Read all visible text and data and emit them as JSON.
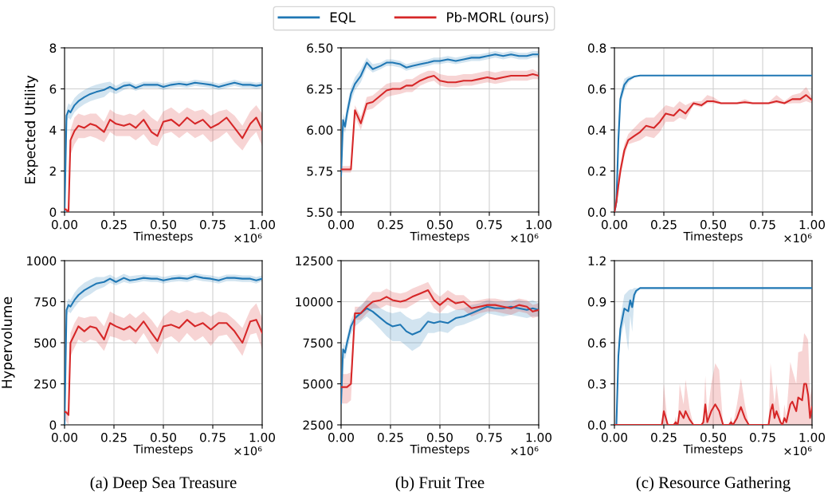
{
  "chart_data": [
    {
      "type": "line",
      "ylabel": "Expected Utility",
      "xlabel": "Timesteps",
      "grid": true,
      "legend": "top",
      "xlim": [
        0,
        1
      ],
      "xticks": [
        {
          "value": 0,
          "label": "0.00"
        },
        {
          "value": 0.25,
          "label": "0.25"
        },
        {
          "value": 0.5,
          "label": "0.50"
        },
        {
          "value": 0.75,
          "label": "0.75"
        },
        {
          "value": 1,
          "label": "1.00"
        }
      ],
      "ylim": [
        0,
        8
      ],
      "yticks": [
        0,
        2,
        4,
        6,
        8
      ],
      "annotations": [
        "×10⁶"
      ],
      "x": [
        0,
        0.01,
        0.02,
        0.03,
        0.05,
        0.07,
        0.1,
        0.13,
        0.16,
        0.2,
        0.23,
        0.26,
        0.3,
        0.33,
        0.36,
        0.4,
        0.44,
        0.47,
        0.5,
        0.54,
        0.58,
        0.62,
        0.66,
        0.7,
        0.74,
        0.78,
        0.82,
        0.86,
        0.9,
        0.94,
        0.97,
        1.0
      ],
      "series": [
        {
          "name": "EQL",
          "color": "#1f77b4",
          "values": [
            0,
            4.7,
            4.95,
            4.85,
            5.2,
            5.4,
            5.6,
            5.75,
            5.85,
            5.95,
            6.1,
            5.95,
            6.15,
            6.2,
            6.05,
            6.2,
            6.2,
            6.2,
            6.1,
            6.2,
            6.25,
            6.2,
            6.3,
            6.25,
            6.2,
            6.1,
            6.2,
            6.3,
            6.2,
            6.2,
            6.15,
            6.2
          ],
          "lower": [
            0,
            4.4,
            4.6,
            4.5,
            4.85,
            5.05,
            5.25,
            5.4,
            5.5,
            5.6,
            5.85,
            5.75,
            5.95,
            6.05,
            5.9,
            6.05,
            6.05,
            6.05,
            5.95,
            6.05,
            6.1,
            6.05,
            6.15,
            6.1,
            6.05,
            5.95,
            6.05,
            6.15,
            6.05,
            6.05,
            6.0,
            6.05
          ],
          "upper": [
            0,
            5.0,
            5.3,
            5.2,
            5.55,
            5.75,
            5.95,
            6.1,
            6.2,
            6.3,
            6.35,
            6.15,
            6.35,
            6.35,
            6.2,
            6.35,
            6.35,
            6.35,
            6.25,
            6.35,
            6.4,
            6.35,
            6.45,
            6.4,
            6.35,
            6.25,
            6.35,
            6.45,
            6.35,
            6.35,
            6.3,
            6.35
          ]
        },
        {
          "name": "Pb-MORL (ours)",
          "color": "#d62728",
          "values": [
            0.15,
            0.1,
            0.0,
            3.5,
            3.95,
            4.2,
            4.1,
            4.3,
            4.2,
            3.9,
            4.5,
            4.3,
            4.2,
            4.3,
            4.1,
            4.5,
            3.9,
            3.7,
            4.4,
            4.5,
            4.2,
            4.6,
            4.3,
            4.5,
            4.1,
            4.3,
            4.6,
            4.1,
            3.6,
            4.3,
            4.6,
            4.0
          ],
          "lower": [
            0.1,
            0.0,
            0.0,
            2.8,
            3.3,
            3.6,
            3.6,
            3.7,
            3.6,
            3.4,
            3.9,
            3.7,
            3.7,
            3.7,
            3.5,
            3.8,
            3.3,
            3.2,
            3.8,
            3.9,
            3.6,
            3.9,
            3.6,
            3.8,
            3.4,
            3.6,
            3.9,
            3.4,
            3.0,
            3.6,
            3.9,
            3.2
          ],
          "upper": [
            0.2,
            0.2,
            0.1,
            4.0,
            4.6,
            4.8,
            4.7,
            4.8,
            4.8,
            4.4,
            5.0,
            4.8,
            4.7,
            4.8,
            4.7,
            5.0,
            4.6,
            4.4,
            4.9,
            5.1,
            4.8,
            5.1,
            4.9,
            5.0,
            4.7,
            4.9,
            5.0,
            4.7,
            4.2,
            4.9,
            5.2,
            4.8
          ]
        }
      ]
    },
    {
      "type": "line",
      "xlabel": "Timesteps",
      "grid": true,
      "xlim": [
        0,
        1
      ],
      "xticks": [
        {
          "value": 0,
          "label": "0.00"
        },
        {
          "value": 0.25,
          "label": "0.25"
        },
        {
          "value": 0.5,
          "label": "0.50"
        },
        {
          "value": 0.75,
          "label": "0.75"
        },
        {
          "value": 1,
          "label": "1.00"
        }
      ],
      "ylim": [
        5.5,
        6.5
      ],
      "yticks": [
        {
          "value": 5.5,
          "label": "5.50"
        },
        {
          "value": 5.75,
          "label": "5.75"
        },
        {
          "value": 6.0,
          "label": "6.00"
        },
        {
          "value": 6.25,
          "label": "6.25"
        },
        {
          "value": 6.5,
          "label": "6.50"
        }
      ],
      "annotations": [
        "×10⁶"
      ],
      "x": [
        0,
        0.01,
        0.02,
        0.03,
        0.05,
        0.07,
        0.1,
        0.13,
        0.16,
        0.2,
        0.23,
        0.26,
        0.3,
        0.33,
        0.36,
        0.4,
        0.44,
        0.47,
        0.5,
        0.54,
        0.58,
        0.62,
        0.66,
        0.7,
        0.74,
        0.78,
        0.82,
        0.86,
        0.9,
        0.94,
        0.97,
        1.0
      ],
      "series": [
        {
          "color": "#1f77b4",
          "values": [
            5.72,
            6.06,
            6.02,
            6.1,
            6.22,
            6.28,
            6.33,
            6.41,
            6.37,
            6.39,
            6.41,
            6.41,
            6.4,
            6.38,
            6.39,
            6.4,
            6.41,
            6.42,
            6.42,
            6.43,
            6.42,
            6.43,
            6.44,
            6.44,
            6.45,
            6.46,
            6.45,
            6.46,
            6.45,
            6.45,
            6.46,
            6.46
          ],
          "lower": [
            5.7,
            6.0,
            5.98,
            6.05,
            6.17,
            6.24,
            6.29,
            6.38,
            6.35,
            6.37,
            6.39,
            6.39,
            6.38,
            6.36,
            6.37,
            6.38,
            6.39,
            6.4,
            6.4,
            6.41,
            6.4,
            6.41,
            6.42,
            6.42,
            6.43,
            6.44,
            6.43,
            6.44,
            6.43,
            6.43,
            6.44,
            6.44
          ],
          "upper": [
            5.74,
            6.1,
            6.07,
            6.15,
            6.26,
            6.32,
            6.37,
            6.44,
            6.4,
            6.41,
            6.43,
            6.43,
            6.42,
            6.4,
            6.41,
            6.42,
            6.43,
            6.44,
            6.44,
            6.45,
            6.44,
            6.45,
            6.46,
            6.46,
            6.47,
            6.48,
            6.47,
            6.48,
            6.47,
            6.47,
            6.48,
            6.48
          ]
        },
        {
          "color": "#d62728",
          "values": [
            5.76,
            5.76,
            5.76,
            5.76,
            5.76,
            6.12,
            6.04,
            6.16,
            6.17,
            6.21,
            6.24,
            6.25,
            6.25,
            6.27,
            6.27,
            6.3,
            6.32,
            6.33,
            6.3,
            6.29,
            6.29,
            6.3,
            6.3,
            6.31,
            6.32,
            6.31,
            6.32,
            6.33,
            6.33,
            6.33,
            6.34,
            6.33
          ],
          "lower": [
            5.74,
            5.74,
            5.74,
            5.74,
            5.74,
            6.08,
            6.0,
            6.12,
            6.13,
            6.17,
            6.2,
            6.21,
            6.22,
            6.23,
            6.23,
            6.27,
            6.29,
            6.3,
            6.27,
            6.26,
            6.26,
            6.27,
            6.27,
            6.28,
            6.29,
            6.28,
            6.29,
            6.3,
            6.3,
            6.3,
            6.31,
            6.31
          ],
          "upper": [
            5.78,
            5.78,
            5.78,
            5.78,
            5.78,
            6.15,
            6.08,
            6.2,
            6.21,
            6.25,
            6.28,
            6.29,
            6.29,
            6.31,
            6.31,
            6.34,
            6.36,
            6.36,
            6.34,
            6.33,
            6.33,
            6.34,
            6.34,
            6.35,
            6.36,
            6.35,
            6.36,
            6.36,
            6.36,
            6.36,
            6.37,
            6.35
          ]
        }
      ]
    },
    {
      "type": "line",
      "xlabel": "Timesteps",
      "grid": true,
      "xlim": [
        0,
        1
      ],
      "xticks": [
        {
          "value": 0,
          "label": "0.00"
        },
        {
          "value": 0.25,
          "label": "0.25"
        },
        {
          "value": 0.5,
          "label": "0.50"
        },
        {
          "value": 0.75,
          "label": "0.75"
        },
        {
          "value": 1,
          "label": "1.00"
        }
      ],
      "ylim": [
        0,
        0.8
      ],
      "yticks": [
        {
          "value": 0,
          "label": "0.0"
        },
        0.2,
        0.4,
        0.6,
        0.8
      ],
      "annotations": [
        "×10⁶"
      ],
      "x": [
        0,
        0.01,
        0.02,
        0.03,
        0.05,
        0.07,
        0.1,
        0.13,
        0.16,
        0.2,
        0.23,
        0.26,
        0.3,
        0.33,
        0.36,
        0.4,
        0.44,
        0.47,
        0.5,
        0.54,
        0.58,
        0.62,
        0.66,
        0.7,
        0.74,
        0.78,
        0.82,
        0.86,
        0.9,
        0.94,
        0.97,
        1.0
      ],
      "series": [
        {
          "color": "#1f77b4",
          "values": [
            0,
            0.05,
            0.35,
            0.55,
            0.62,
            0.645,
            0.66,
            0.665,
            0.665,
            0.665,
            0.665,
            0.665,
            0.665,
            0.665,
            0.665,
            0.665,
            0.665,
            0.665,
            0.665,
            0.665,
            0.665,
            0.665,
            0.665,
            0.665,
            0.665,
            0.665,
            0.665,
            0.665,
            0.665,
            0.665,
            0.665,
            0.665
          ],
          "lower": [
            0,
            0.02,
            0.3,
            0.52,
            0.59,
            0.63,
            0.655,
            0.665,
            0.665,
            0.665,
            0.665,
            0.665,
            0.665,
            0.665,
            0.665,
            0.665,
            0.665,
            0.665,
            0.665,
            0.665,
            0.665,
            0.665,
            0.665,
            0.665,
            0.665,
            0.665,
            0.665,
            0.665,
            0.665,
            0.665,
            0.665,
            0.665
          ],
          "upper": [
            0,
            0.08,
            0.4,
            0.58,
            0.65,
            0.66,
            0.665,
            0.665,
            0.665,
            0.665,
            0.665,
            0.665,
            0.665,
            0.665,
            0.665,
            0.665,
            0.665,
            0.665,
            0.665,
            0.665,
            0.665,
            0.665,
            0.665,
            0.665,
            0.665,
            0.665,
            0.665,
            0.665,
            0.665,
            0.665,
            0.665,
            0.665
          ]
        },
        {
          "color": "#d62728",
          "values": [
            0,
            0.05,
            0.13,
            0.2,
            0.3,
            0.35,
            0.37,
            0.39,
            0.42,
            0.41,
            0.44,
            0.48,
            0.47,
            0.5,
            0.48,
            0.53,
            0.52,
            0.54,
            0.54,
            0.53,
            0.53,
            0.53,
            0.535,
            0.53,
            0.53,
            0.53,
            0.54,
            0.53,
            0.55,
            0.55,
            0.57,
            0.545
          ],
          "lower": [
            0,
            0.02,
            0.09,
            0.17,
            0.27,
            0.33,
            0.34,
            0.35,
            0.37,
            0.36,
            0.39,
            0.44,
            0.44,
            0.46,
            0.45,
            0.52,
            0.51,
            0.53,
            0.53,
            0.525,
            0.525,
            0.525,
            0.53,
            0.525,
            0.525,
            0.525,
            0.53,
            0.525,
            0.53,
            0.53,
            0.54,
            0.53
          ],
          "upper": [
            0,
            0.08,
            0.17,
            0.23,
            0.33,
            0.38,
            0.41,
            0.44,
            0.46,
            0.46,
            0.49,
            0.52,
            0.51,
            0.54,
            0.52,
            0.54,
            0.54,
            0.57,
            0.56,
            0.535,
            0.535,
            0.535,
            0.55,
            0.535,
            0.535,
            0.535,
            0.57,
            0.54,
            0.57,
            0.58,
            0.61,
            0.56
          ]
        }
      ]
    },
    {
      "type": "line",
      "ylabel": "Hypervolume",
      "xlabel": "Timesteps",
      "grid": true,
      "xlim": [
        0,
        1
      ],
      "xticks": [
        {
          "value": 0,
          "label": "0.00"
        },
        {
          "value": 0.25,
          "label": "0.25"
        },
        {
          "value": 0.5,
          "label": "0.50"
        },
        {
          "value": 0.75,
          "label": "0.75"
        },
        {
          "value": 1,
          "label": "1.00"
        }
      ],
      "ylim": [
        0,
        1000
      ],
      "yticks": [
        0,
        250,
        500,
        750,
        1000
      ],
      "annotations": [
        "×10⁶",
        "(a) Deep Sea Treasure"
      ],
      "x": [
        0,
        0.01,
        0.02,
        0.03,
        0.05,
        0.07,
        0.1,
        0.13,
        0.16,
        0.2,
        0.23,
        0.26,
        0.3,
        0.33,
        0.36,
        0.4,
        0.44,
        0.47,
        0.5,
        0.54,
        0.58,
        0.62,
        0.66,
        0.7,
        0.74,
        0.78,
        0.82,
        0.86,
        0.9,
        0.94,
        0.97,
        1.0
      ],
      "series": [
        {
          "color": "#1f77b4",
          "values": [
            0,
            700,
            730,
            720,
            760,
            790,
            820,
            840,
            860,
            870,
            890,
            870,
            895,
            880,
            885,
            895,
            890,
            890,
            880,
            890,
            895,
            890,
            905,
            895,
            890,
            880,
            895,
            895,
            890,
            890,
            880,
            890
          ],
          "lower": [
            0,
            660,
            690,
            680,
            715,
            745,
            775,
            795,
            820,
            840,
            865,
            850,
            870,
            860,
            865,
            875,
            870,
            870,
            860,
            870,
            875,
            870,
            885,
            875,
            870,
            860,
            875,
            875,
            870,
            870,
            860,
            875
          ],
          "upper": [
            0,
            740,
            770,
            760,
            805,
            835,
            865,
            885,
            900,
            900,
            915,
            895,
            920,
            905,
            910,
            915,
            910,
            910,
            900,
            910,
            915,
            910,
            925,
            915,
            910,
            900,
            915,
            915,
            910,
            910,
            900,
            910
          ]
        },
        {
          "color": "#d62728",
          "values": [
            80,
            75,
            60,
            500,
            550,
            600,
            570,
            600,
            590,
            520,
            620,
            600,
            580,
            600,
            570,
            630,
            560,
            510,
            600,
            610,
            590,
            640,
            600,
            620,
            580,
            620,
            620,
            570,
            500,
            630,
            640,
            560
          ],
          "lower": [
            40,
            20,
            0,
            420,
            470,
            520,
            500,
            520,
            510,
            450,
            540,
            530,
            510,
            520,
            490,
            560,
            480,
            430,
            520,
            540,
            500,
            560,
            510,
            540,
            480,
            540,
            550,
            490,
            420,
            550,
            560,
            460
          ],
          "upper": [
            90,
            90,
            80,
            560,
            620,
            660,
            650,
            660,
            660,
            600,
            690,
            670,
            650,
            680,
            650,
            690,
            640,
            590,
            660,
            700,
            680,
            700,
            680,
            690,
            660,
            690,
            680,
            640,
            590,
            700,
            740,
            650
          ]
        }
      ]
    },
    {
      "type": "line",
      "xlabel": "Timesteps",
      "grid": true,
      "xlim": [
        0,
        1
      ],
      "xticks": [
        {
          "value": 0,
          "label": "0.00"
        },
        {
          "value": 0.25,
          "label": "0.25"
        },
        {
          "value": 0.5,
          "label": "0.50"
        },
        {
          "value": 0.75,
          "label": "0.75"
        },
        {
          "value": 1,
          "label": "1.00"
        }
      ],
      "ylim": [
        2500,
        12500
      ],
      "yticks": [
        2500,
        5000,
        7500,
        10000,
        12500
      ],
      "annotations": [
        "×10⁶",
        "(b) Fruit Tree"
      ],
      "x": [
        0,
        0.01,
        0.02,
        0.03,
        0.05,
        0.07,
        0.1,
        0.13,
        0.16,
        0.2,
        0.23,
        0.26,
        0.3,
        0.33,
        0.36,
        0.4,
        0.44,
        0.47,
        0.5,
        0.54,
        0.58,
        0.62,
        0.66,
        0.7,
        0.74,
        0.78,
        0.82,
        0.86,
        0.9,
        0.94,
        0.97,
        1.0
      ],
      "series": [
        {
          "color": "#1f77b4",
          "values": [
            3800,
            7100,
            6900,
            7500,
            8500,
            9000,
            9300,
            9600,
            9400,
            9000,
            8700,
            8500,
            8600,
            8200,
            8000,
            8200,
            8800,
            8700,
            8800,
            8700,
            9000,
            9100,
            9300,
            9500,
            9700,
            9600,
            9600,
            9700,
            9600,
            9500,
            9600,
            9500
          ],
          "lower": [
            3600,
            6600,
            6500,
            7000,
            8000,
            8500,
            8800,
            9100,
            8800,
            8300,
            7900,
            7600,
            7600,
            7300,
            7000,
            7300,
            8100,
            8100,
            8200,
            8100,
            8500,
            8600,
            8800,
            9000,
            9300,
            9200,
            9100,
            9200,
            9100,
            9000,
            9100,
            9100
          ],
          "upper": [
            4000,
            7500,
            7300,
            7900,
            8900,
            9400,
            9800,
            10100,
            10000,
            9600,
            9400,
            9300,
            9400,
            9100,
            8900,
            9000,
            9400,
            9300,
            9300,
            9300,
            9500,
            9600,
            9800,
            9900,
            10100,
            10000,
            10000,
            10100,
            10100,
            10000,
            10100,
            9900
          ]
        },
        {
          "color": "#d62728",
          "values": [
            4800,
            4800,
            4800,
            4800,
            5000,
            9300,
            9300,
            9700,
            10000,
            10100,
            10300,
            10100,
            10000,
            10100,
            10300,
            10500,
            10700,
            10100,
            9800,
            10200,
            9900,
            10000,
            9600,
            9700,
            9800,
            9800,
            9700,
            9600,
            9800,
            9700,
            9400,
            9500
          ],
          "lower": [
            3800,
            3800,
            3800,
            3800,
            4000,
            8900,
            8900,
            9300,
            9600,
            9600,
            9800,
            9700,
            9600,
            9600,
            9800,
            10100,
            10200,
            9600,
            9300,
            9800,
            9500,
            9500,
            9100,
            9300,
            9400,
            9400,
            9300,
            9200,
            9400,
            9300,
            9000,
            9100
          ],
          "upper": [
            5600,
            5600,
            5600,
            5600,
            5700,
            9700,
            9700,
            10200,
            10600,
            10600,
            10800,
            10600,
            10500,
            10600,
            10800,
            11000,
            11200,
            10600,
            10300,
            10700,
            10400,
            10400,
            10000,
            10100,
            10200,
            10200,
            10100,
            10000,
            10200,
            10100,
            9800,
            9900
          ]
        }
      ]
    },
    {
      "type": "line",
      "xlabel": "Timesteps",
      "grid": true,
      "xlim": [
        0,
        1
      ],
      "xticks": [
        {
          "value": 0,
          "label": "0.00"
        },
        {
          "value": 0.25,
          "label": "0.25"
        },
        {
          "value": 0.5,
          "label": "0.50"
        },
        {
          "value": 0.75,
          "label": "0.75"
        },
        {
          "value": 1,
          "label": "1.00"
        }
      ],
      "ylim": [
        0,
        1.2
      ],
      "yticks": [
        {
          "value": 0,
          "label": "0.0"
        },
        0.3,
        0.6,
        0.9,
        1.2
      ],
      "annotations": [
        "×10⁶",
        "(c) Resource Gathering"
      ],
      "x": [
        0,
        0.01,
        0.02,
        0.03,
        0.05,
        0.07,
        0.08,
        0.09,
        0.1,
        0.11,
        0.13,
        0.16,
        0.2,
        0.3,
        0.4,
        0.5,
        0.6,
        0.7,
        0.8,
        0.9,
        1.0
      ],
      "series": [
        {
          "color": "#1f77b4",
          "values": [
            0,
            0,
            0.5,
            0.7,
            0.85,
            0.83,
            0.91,
            0.86,
            0.95,
            0.98,
            1.0,
            1.0,
            1.0,
            1.0,
            1.0,
            1.0,
            1.0,
            1.0,
            1.0,
            1.0,
            1.0
          ],
          "lower": [
            0,
            0,
            0.45,
            0.62,
            0.75,
            0.54,
            0.8,
            0.68,
            0.9,
            0.96,
            0.995,
            1.0,
            1.0,
            1.0,
            1.0,
            1.0,
            1.0,
            1.0,
            1.0,
            1.0,
            1.0
          ],
          "upper": [
            0,
            0,
            0.55,
            0.78,
            0.95,
            0.98,
            0.99,
            0.99,
            1.0,
            1.0,
            1.0,
            1.0,
            1.0,
            1.0,
            1.0,
            1.0,
            1.0,
            1.0,
            1.0,
            1.0,
            1.0
          ]
        },
        {
          "color": "#d62728",
          "x": [
            0,
            0.24,
            0.25,
            0.27,
            0.3,
            0.31,
            0.32,
            0.33,
            0.35,
            0.36,
            0.38,
            0.4,
            0.44,
            0.45,
            0.46,
            0.47,
            0.49,
            0.51,
            0.53,
            0.55,
            0.58,
            0.59,
            0.6,
            0.62,
            0.64,
            0.66,
            0.68,
            0.78,
            0.79,
            0.8,
            0.81,
            0.82,
            0.84,
            0.85,
            0.86,
            0.87,
            0.89,
            0.9,
            0.92,
            0.93,
            0.95,
            0.96,
            0.97,
            0.98,
            0.99,
            1.0
          ],
          "values": [
            0,
            0,
            0.1,
            0,
            0,
            0.02,
            0,
            0.1,
            0.05,
            0.1,
            0.04,
            0,
            0,
            0.02,
            0.15,
            0.02,
            0.1,
            0.15,
            0.1,
            0,
            0,
            0.02,
            0,
            0.05,
            0.13,
            0.05,
            0,
            0,
            0.1,
            0.15,
            0.05,
            0.1,
            0.02,
            0,
            0.05,
            0.02,
            0.15,
            0.17,
            0.1,
            0.2,
            0.18,
            0.3,
            0.3,
            0.22,
            0.05,
            0.13
          ],
          "lower": [
            0,
            0,
            0,
            0,
            0,
            0,
            0,
            0,
            0,
            0,
            0,
            0,
            0,
            0,
            0,
            0,
            0,
            0,
            0,
            0,
            0,
            0,
            0,
            0,
            0,
            0,
            0,
            0,
            0,
            0,
            0,
            0,
            0,
            0,
            0,
            0,
            0,
            0,
            0,
            0,
            0,
            0,
            0,
            0,
            0,
            0
          ],
          "upper": [
            0,
            0,
            0.3,
            0,
            0,
            0.06,
            0,
            0.3,
            0.15,
            0.33,
            0.12,
            0,
            0,
            0.06,
            0.36,
            0.06,
            0.3,
            0.45,
            0.4,
            0,
            0,
            0.06,
            0,
            0.15,
            0.34,
            0.15,
            0,
            0,
            0.45,
            0.3,
            0.15,
            0.3,
            0.06,
            0,
            0.15,
            0.06,
            0.46,
            0.4,
            0.3,
            0.53,
            0.54,
            0.67,
            0.65,
            0.62,
            0.2,
            0.28
          ]
        }
      ]
    }
  ]
}
